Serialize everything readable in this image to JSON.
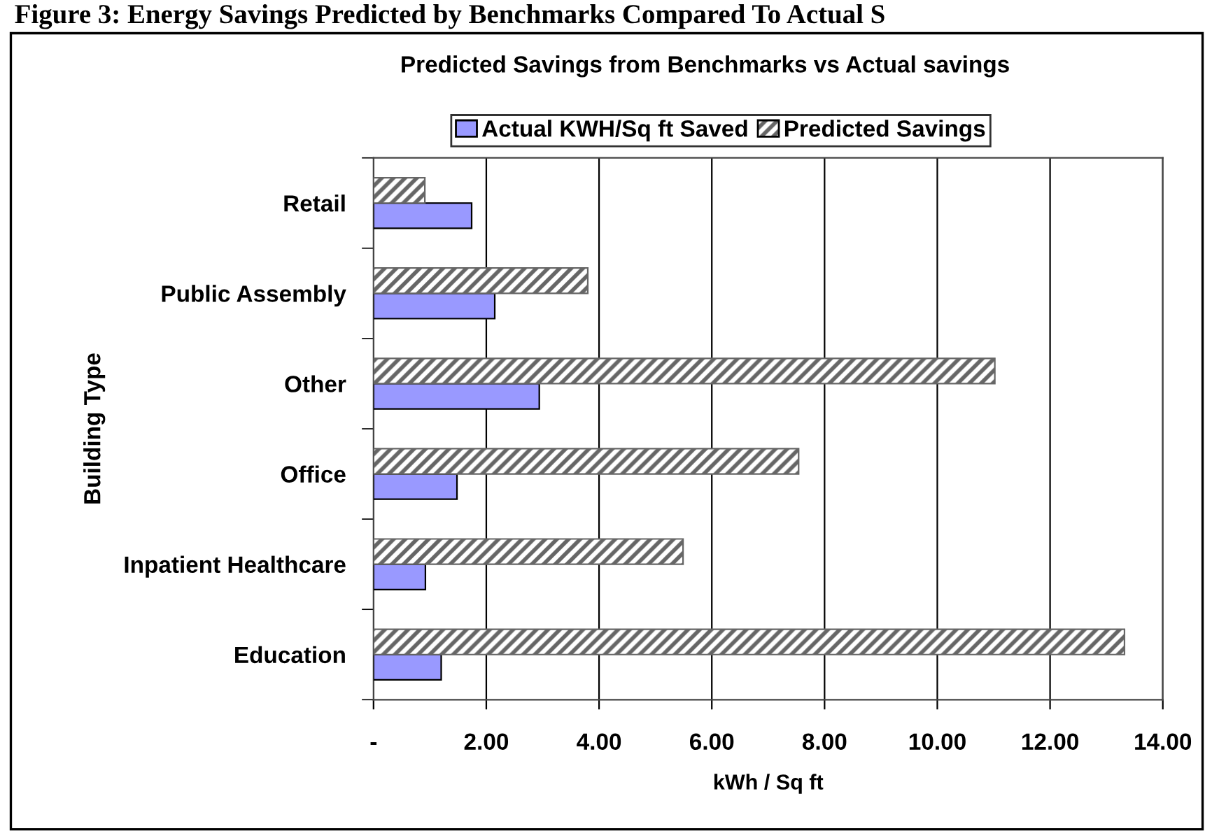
{
  "chart_data": {
    "type": "bar",
    "orientation": "horizontal",
    "title": "Predicted Savings from Benchmarks vs Actual savings",
    "xlabel": "kWh / Sq ft",
    "ylabel": "Building Type",
    "annotations": [
      "Figure 3: Energy Savings Predicted by Benchmarks Compared To Actual S"
    ],
    "categories": [
      "Retail",
      "Public Assembly",
      "Other",
      "Office",
      "Inpatient Healthcare",
      "Education"
    ],
    "series": [
      {
        "name": "Actual KWH/Sq ft Saved",
        "color": "#9999ff",
        "values": [
          1.74,
          2.15,
          2.94,
          1.48,
          0.92,
          1.2
        ]
      },
      {
        "name": "Predicted Savings",
        "color": "#666666",
        "values": [
          0.91,
          3.8,
          11.02,
          7.54,
          5.49,
          13.32
        ]
      }
    ],
    "xlim": [
      0,
      14
    ],
    "xticks": [
      {
        "value": 0,
        "label": "-"
      },
      {
        "value": 2,
        "label": "2.00"
      },
      {
        "value": 4,
        "label": "4.00"
      },
      {
        "value": 6,
        "label": "6.00"
      },
      {
        "value": 8,
        "label": "8.00"
      },
      {
        "value": 10,
        "label": "10.00"
      },
      {
        "value": 12,
        "label": "12.00"
      },
      {
        "value": 14,
        "label": "14.00"
      }
    ],
    "grid": "x",
    "legend": "top"
  }
}
